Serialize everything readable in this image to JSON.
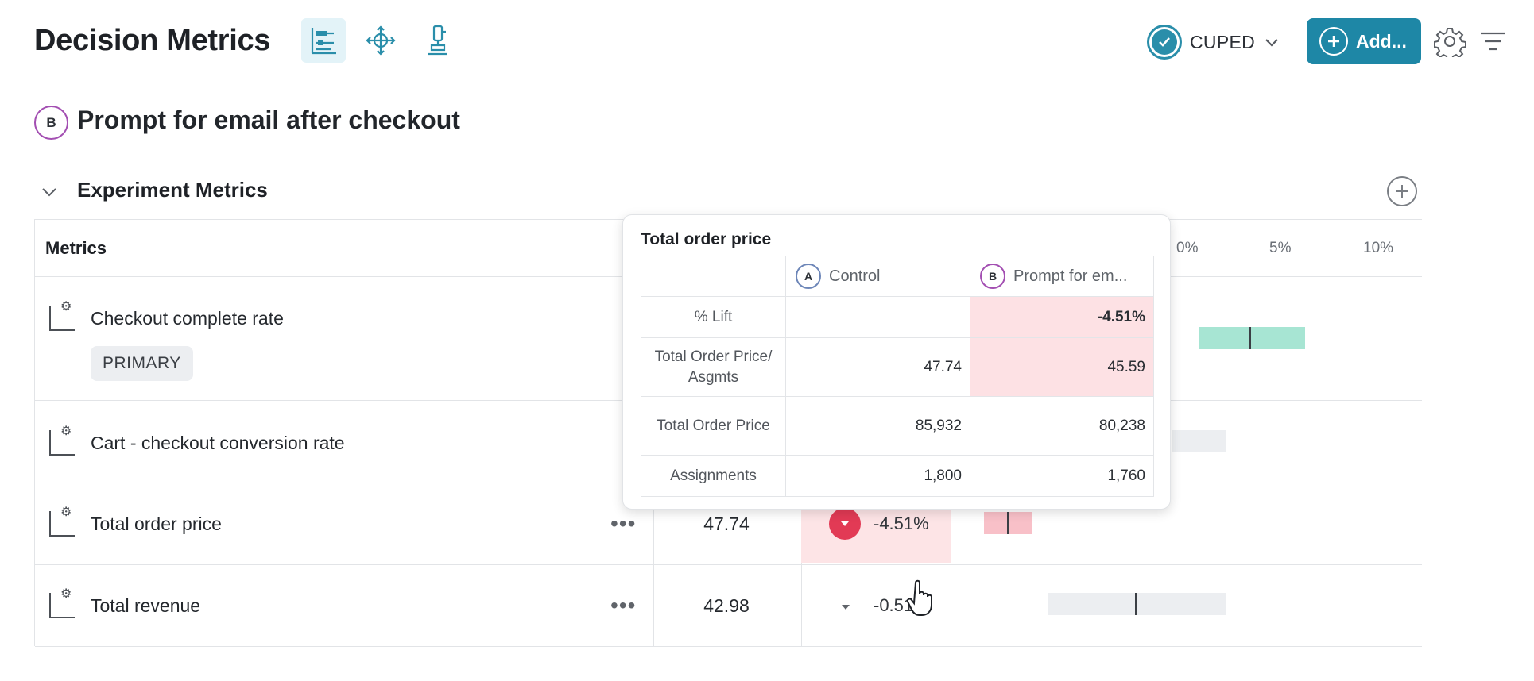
{
  "header": {
    "title": "Decision Metrics",
    "cuped_label": "CUPED",
    "add_label": "Add..."
  },
  "group": {
    "badge": "B",
    "title": "Prompt for email after checkout"
  },
  "section": {
    "title": "Experiment Metrics"
  },
  "table": {
    "metrics_header": "Metrics",
    "scale_ticks": [
      "0%",
      "5%",
      "10%"
    ],
    "rows": [
      {
        "name": "Checkout complete rate",
        "tag": "PRIMARY"
      },
      {
        "name": "Cart - checkout conversion rate"
      },
      {
        "name": "Total order price",
        "value": "47.74",
        "lift": "-4.51%"
      },
      {
        "name": "Total revenue",
        "value": "42.98",
        "lift": "-0.51"
      }
    ]
  },
  "tooltip": {
    "title": "Total order price",
    "col_a_badge": "A",
    "col_a": "Control",
    "col_b_badge": "B",
    "col_b": "Prompt for em...",
    "rows": [
      {
        "label": "% Lift",
        "a": "",
        "b": "-4.51%"
      },
      {
        "label": "Total Order Price/ Asgmts",
        "a": "47.74",
        "b": "45.59"
      },
      {
        "label": "Total Order Price",
        "a": "85,932",
        "b": "80,238"
      },
      {
        "label": "Assignments",
        "a": "1,800",
        "b": "1,760"
      }
    ]
  },
  "colors": {
    "accent": "#1e87a6",
    "negative": "#e23a55",
    "negative_bg": "#fde4e6",
    "positive_bar": "#a7e5d3",
    "badge_b": "#a34fb2",
    "badge_a": "#6d86b8"
  },
  "icons": {
    "view_1": "metrics-layout-icon",
    "view_2": "crosshair-move-icon",
    "view_3": "microscope-icon",
    "settings": "gear-icon",
    "filter": "filter-lines-icon"
  }
}
